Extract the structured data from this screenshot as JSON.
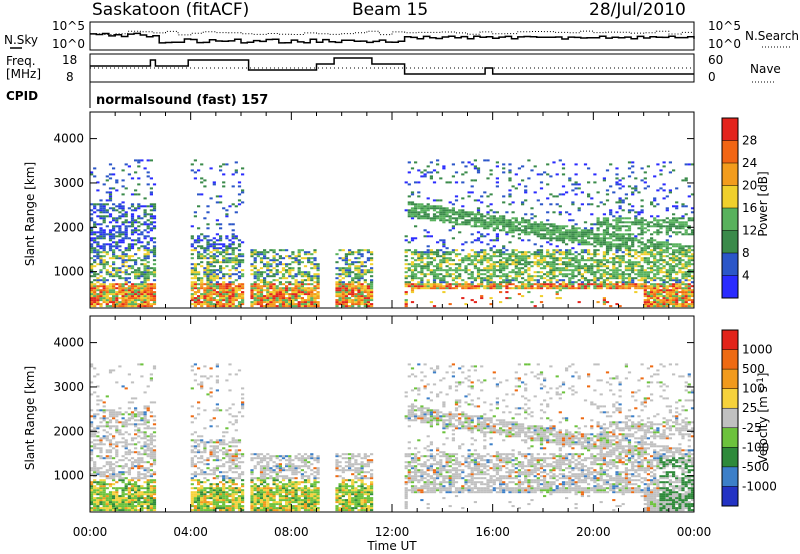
{
  "header": {
    "station": "Saskatoon (fitACF)",
    "beam": "Beam 15",
    "date": "28/Jul/2010"
  },
  "top_panel": {
    "left_label": "N.Sky",
    "left_ticks": [
      "10^5",
      "10^0"
    ],
    "right_label": "N.Search",
    "right_ticks": [
      "10^5",
      "10^0"
    ]
  },
  "freq_panel": {
    "left_label_1": "Freq.",
    "left_label_2": "[MHz]",
    "left_ticks": [
      "18",
      "8"
    ],
    "right_label": "Nave",
    "right_ticks": [
      "60",
      "0"
    ]
  },
  "cpid": {
    "label": "CPID",
    "value": "normalsound (fast) 157"
  },
  "x_axis": {
    "label": "Time UT",
    "ticks": [
      "00:00",
      "04:00",
      "08:00",
      "12:00",
      "16:00",
      "20:00",
      "00:00"
    ]
  },
  "chart_data": [
    {
      "type": "heatmap",
      "title": "",
      "xlabel": "Time UT",
      "ylabel": "Slant Range [km]",
      "x_range_hours": [
        0,
        24
      ],
      "ylim": [
        180,
        4600
      ],
      "yticks": [
        1000,
        2000,
        3000,
        4000
      ],
      "colorbar": {
        "label": "Power [dB]",
        "ticks": [
          "28",
          "24",
          "20",
          "16",
          "12",
          "8",
          "4"
        ],
        "colors": [
          "#2a2bff",
          "#2b56c8",
          "#3a8a4a",
          "#58b25d",
          "#f0d02c",
          "#f39c1c",
          "#f26513",
          "#e3241c"
        ]
      },
      "echo_regions": [
        {
          "t": [
            0.0,
            2.6
          ],
          "range_km": [
            200,
            3500
          ]
        },
        {
          "t": [
            3.9,
            6.0
          ],
          "range_km": [
            200,
            3500
          ]
        },
        {
          "t": [
            6.3,
            9.0
          ],
          "range_km": [
            200,
            1500
          ]
        },
        {
          "t": [
            9.7,
            11.2
          ],
          "range_km": [
            200,
            1500
          ]
        },
        {
          "t": [
            12.5,
            24.0
          ],
          "range_km": [
            200,
            3500
          ]
        }
      ]
    },
    {
      "type": "heatmap",
      "title": "",
      "xlabel": "Time UT",
      "ylabel": "Slant Range [km]",
      "x_range_hours": [
        0,
        24
      ],
      "ylim": [
        180,
        4600
      ],
      "yticks": [
        1000,
        2000,
        3000,
        4000
      ],
      "colorbar": {
        "label": "Velocity [m s^-1]",
        "ticks": [
          "1000",
          "500",
          "100",
          "25",
          "-25",
          "-100",
          "-500",
          "-1000"
        ],
        "colors": [
          "#2433c4",
          "#3c7fc8",
          "#2e8a3a",
          "#6cc23c",
          "#c0c0c0",
          "#f6d23c",
          "#f29a1c",
          "#ee6a12",
          "#e2231a"
        ]
      }
    }
  ]
}
